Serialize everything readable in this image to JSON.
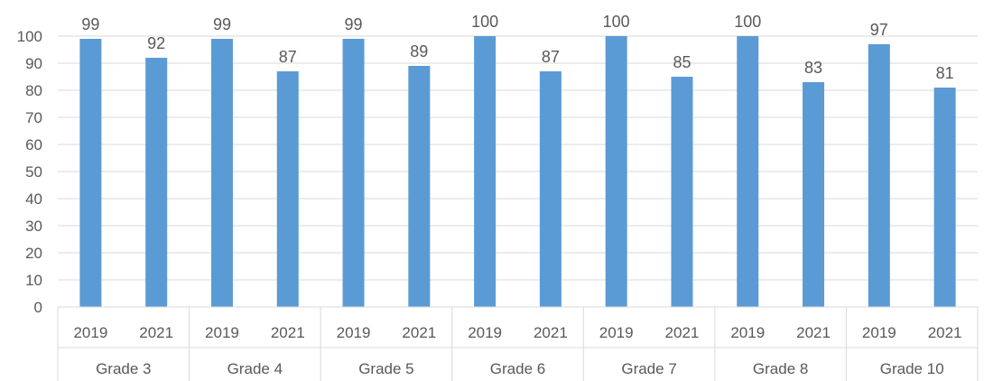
{
  "chart_data": {
    "type": "bar",
    "title": "",
    "xlabel": "",
    "ylabel": "",
    "ylim": [
      0,
      100
    ],
    "yticks": [
      0,
      10,
      20,
      30,
      40,
      50,
      60,
      70,
      80,
      90,
      100
    ],
    "grid": true,
    "legend": "none",
    "bar_color": "#5B9BD5",
    "groups": [
      {
        "label": "Grade 3",
        "bars": [
          {
            "year": "2019",
            "value": 99
          },
          {
            "year": "2021",
            "value": 92
          }
        ]
      },
      {
        "label": "Grade 4",
        "bars": [
          {
            "year": "2019",
            "value": 99
          },
          {
            "year": "2021",
            "value": 87
          }
        ]
      },
      {
        "label": "Grade 5",
        "bars": [
          {
            "year": "2019",
            "value": 99
          },
          {
            "year": "2021",
            "value": 89
          }
        ]
      },
      {
        "label": "Grade 6",
        "bars": [
          {
            "year": "2019",
            "value": 100
          },
          {
            "year": "2021",
            "value": 87
          }
        ]
      },
      {
        "label": "Grade 7",
        "bars": [
          {
            "year": "2019",
            "value": 100
          },
          {
            "year": "2021",
            "value": 85
          }
        ]
      },
      {
        "label": "Grade 8",
        "bars": [
          {
            "year": "2019",
            "value": 100
          },
          {
            "year": "2021",
            "value": 83
          }
        ]
      },
      {
        "label": "Grade 10",
        "bars": [
          {
            "year": "2019",
            "value": 97
          },
          {
            "year": "2021",
            "value": 81
          }
        ]
      }
    ]
  }
}
